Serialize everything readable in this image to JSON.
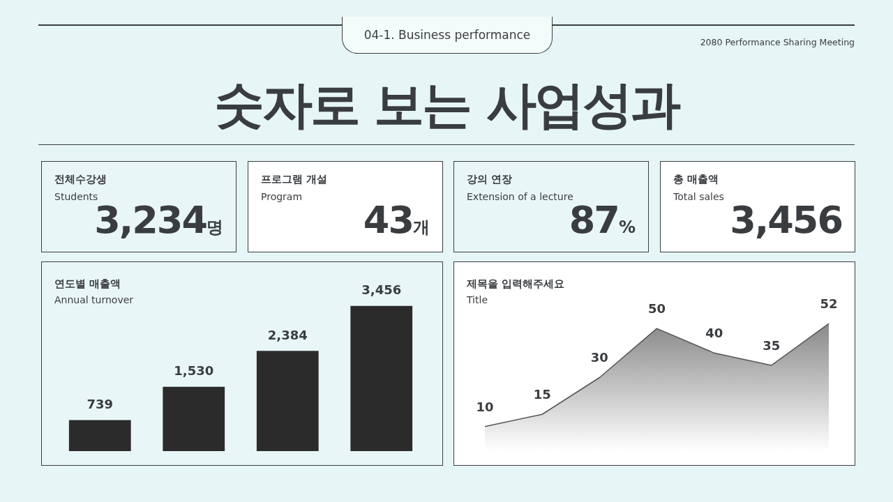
{
  "chart_data": [
    {
      "type": "other",
      "title": "숫자로 보는 사업성과",
      "annotations": [
        "04-1. Business performance",
        "2080 Performance Sharing Meeting"
      ]
    },
    {
      "type": "other",
      "title": "전체수강생",
      "subtitle": "Students",
      "annotations": [
        "3,234",
        "명"
      ]
    },
    {
      "type": "other",
      "title": "프로그램 개설",
      "subtitle": "Program",
      "annotations": [
        "43",
        "개"
      ]
    },
    {
      "type": "other",
      "title": "강의 연장",
      "subtitle": "Extension of a lecture",
      "annotations": [
        "87",
        "%"
      ]
    },
    {
      "type": "other",
      "title": "총 매출액",
      "subtitle": "Total sales",
      "annotations": [
        "3,456"
      ]
    },
    {
      "type": "bar",
      "title": "연도별 매출액",
      "subtitle": "Annual turnover",
      "categories": [
        null,
        null,
        null,
        null
      ],
      "values": [
        739,
        1530,
        2384,
        3456
      ],
      "value_labels": [
        "739",
        "1,530",
        "2,384",
        "3,456"
      ],
      "color": "#2b2b2b"
    },
    {
      "type": "area",
      "title": "제목을 입력해주세요",
      "subtitle": "Title",
      "categories": [
        null,
        null,
        null,
        null,
        null,
        null,
        null
      ],
      "values": [
        10,
        15,
        30,
        50,
        40,
        35,
        52
      ],
      "color": "#555555",
      "data_labels": true
    }
  ]
}
